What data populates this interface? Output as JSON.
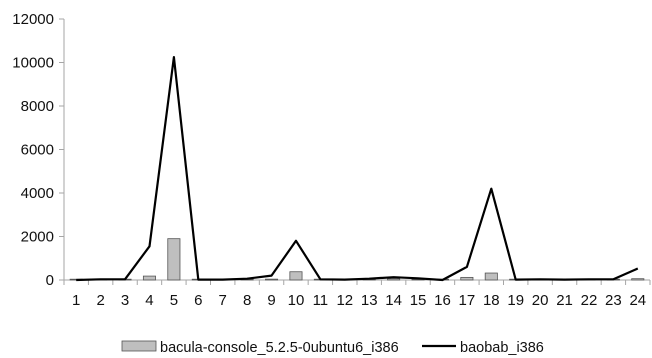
{
  "chart_data": {
    "type": "bar",
    "categories": [
      "1",
      "2",
      "3",
      "4",
      "5",
      "6",
      "7",
      "8",
      "9",
      "10",
      "11",
      "12",
      "13",
      "14",
      "15",
      "16",
      "17",
      "18",
      "19",
      "20",
      "21",
      "22",
      "23",
      "24"
    ],
    "ylim": [
      0,
      12000
    ],
    "yticks": [
      0,
      2000,
      4000,
      6000,
      8000,
      10000,
      12000
    ],
    "grid": false,
    "legend_position": "bottom",
    "series": [
      {
        "name": "bacula-console_5.2.5-0ubuntu6_i386",
        "type": "bar",
        "color": "#bfbfbf",
        "values": [
          5,
          5,
          5,
          180,
          1900,
          5,
          5,
          5,
          40,
          380,
          5,
          5,
          5,
          60,
          5,
          5,
          120,
          320,
          5,
          5,
          5,
          5,
          5,
          60
        ]
      },
      {
        "name": "baobab_i386",
        "type": "line",
        "color": "#000000",
        "values": [
          0,
          30,
          30,
          1550,
          10250,
          20,
          20,
          60,
          200,
          1800,
          30,
          20,
          60,
          130,
          80,
          0,
          600,
          4200,
          20,
          30,
          20,
          30,
          30,
          530
        ]
      }
    ]
  }
}
